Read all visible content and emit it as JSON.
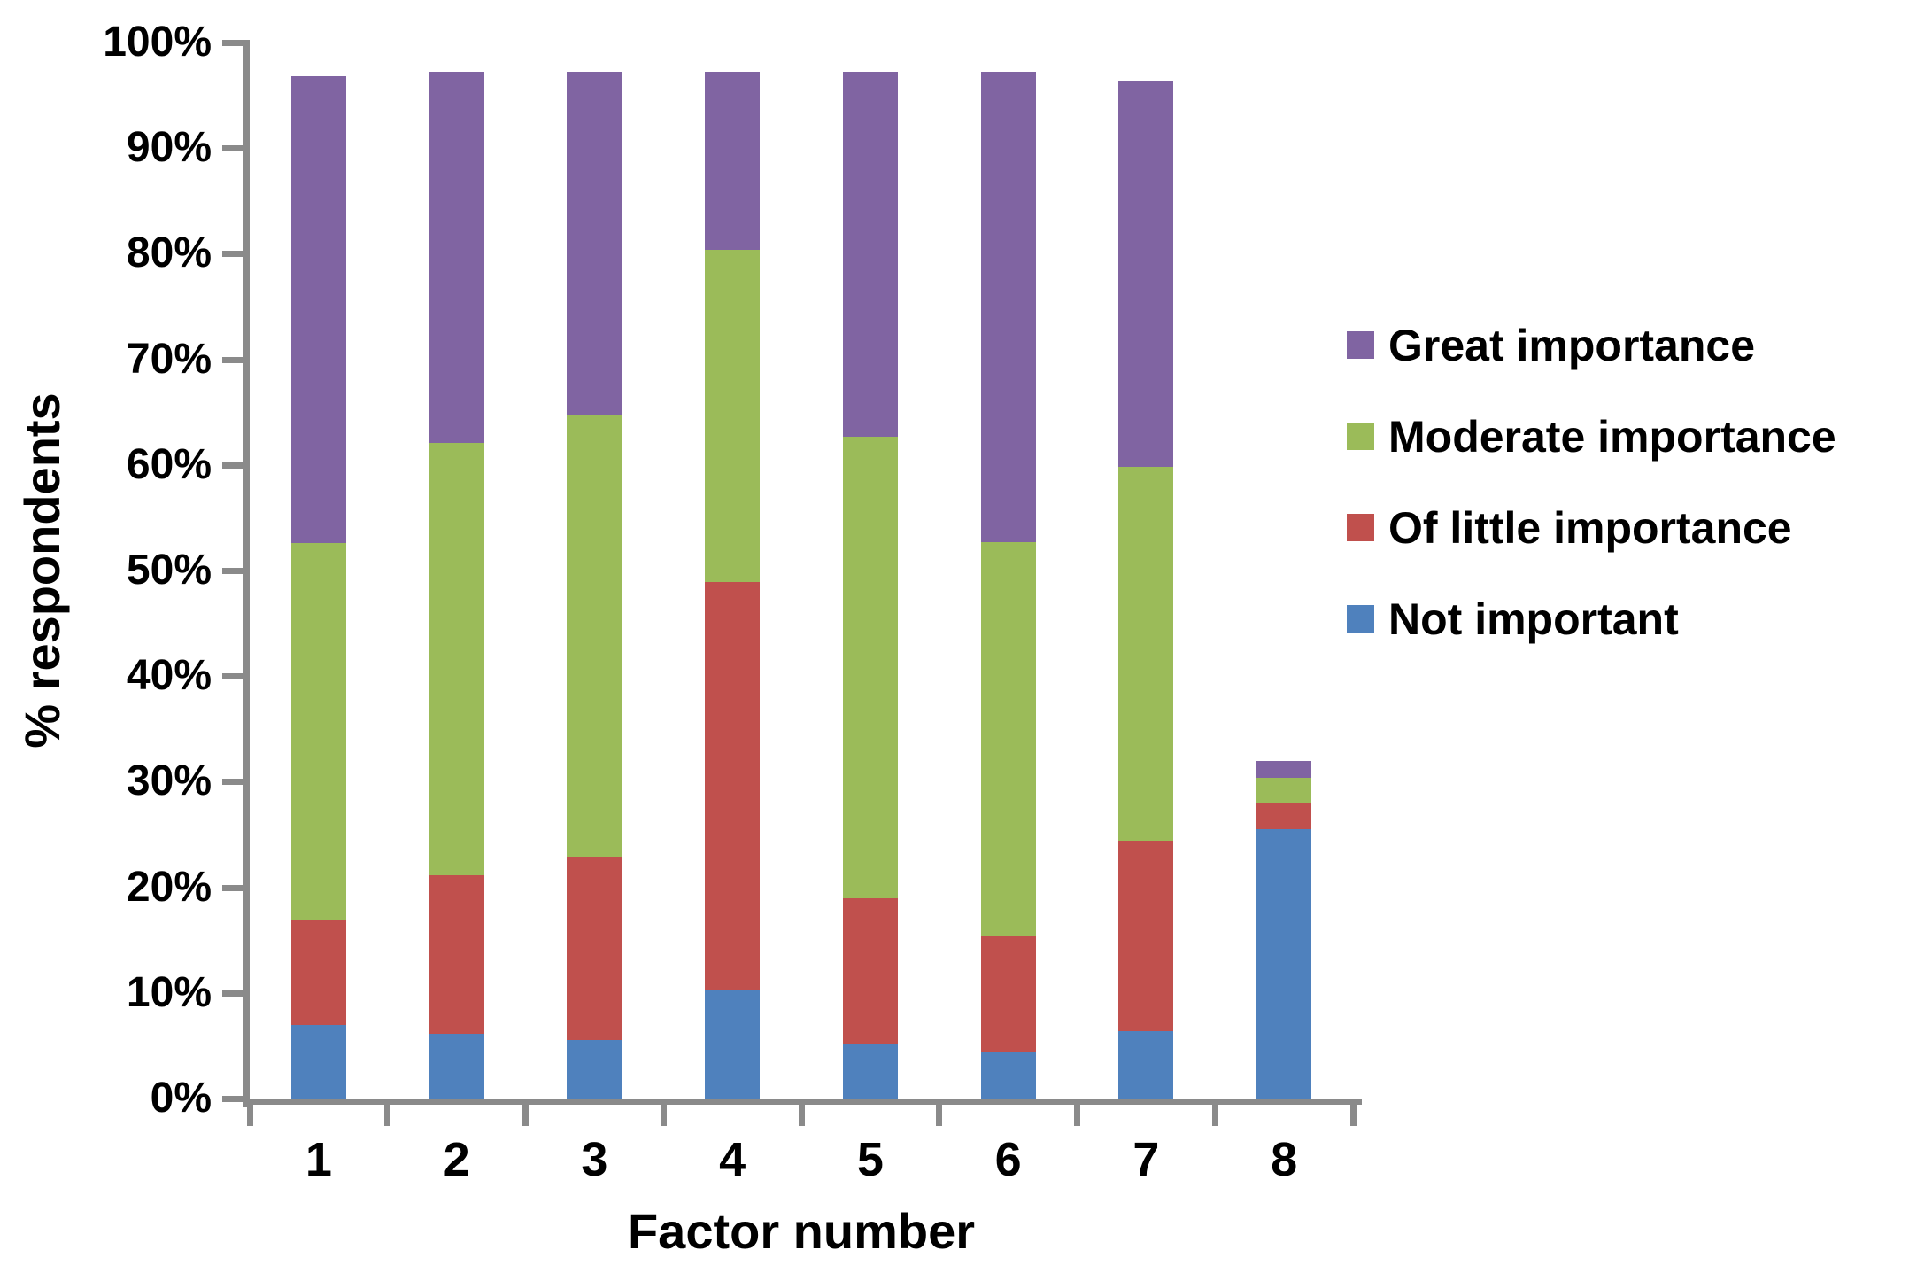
{
  "chart_data": {
    "type": "bar",
    "stacked": true,
    "title": "",
    "xlabel": "Factor number",
    "ylabel": "% respondents",
    "categories": [
      "1",
      "2",
      "3",
      "4",
      "5",
      "6",
      "7",
      "8"
    ],
    "series": [
      {
        "name": "Not important",
        "color": "#4f81bd",
        "values": [
          7.0,
          6.1,
          5.5,
          10.3,
          5.2,
          4.4,
          6.4,
          25.5
        ]
      },
      {
        "name": "Of little importance",
        "color": "#c0504d",
        "values": [
          9.9,
          15.0,
          17.4,
          38.6,
          13.8,
          11.0,
          18.0,
          2.5
        ]
      },
      {
        "name": "Moderate importance",
        "color": "#9bbb59",
        "values": [
          35.7,
          41.0,
          41.8,
          31.5,
          43.7,
          37.3,
          35.4,
          2.4
        ]
      },
      {
        "name": "Great importance",
        "color": "#8064a2",
        "values": [
          44.2,
          35.1,
          32.5,
          16.8,
          34.5,
          44.5,
          36.6,
          1.6
        ]
      }
    ],
    "bar_totals": [
      96.8,
      97.2,
      97.2,
      97.2,
      97.2,
      97.2,
      96.4,
      32.0
    ],
    "ylim": [
      0,
      100
    ],
    "ytick_step": 10,
    "ytick_labels": [
      "0%",
      "10%",
      "20%",
      "30%",
      "40%",
      "50%",
      "60%",
      "70%",
      "80%",
      "90%",
      "100%"
    ],
    "grid": false,
    "legend_position": "right",
    "legend_order": [
      "Great importance",
      "Moderate importance",
      "Of little importance",
      "Not important"
    ],
    "axis_color": "#8a8a8a",
    "text_color": "#000000"
  }
}
